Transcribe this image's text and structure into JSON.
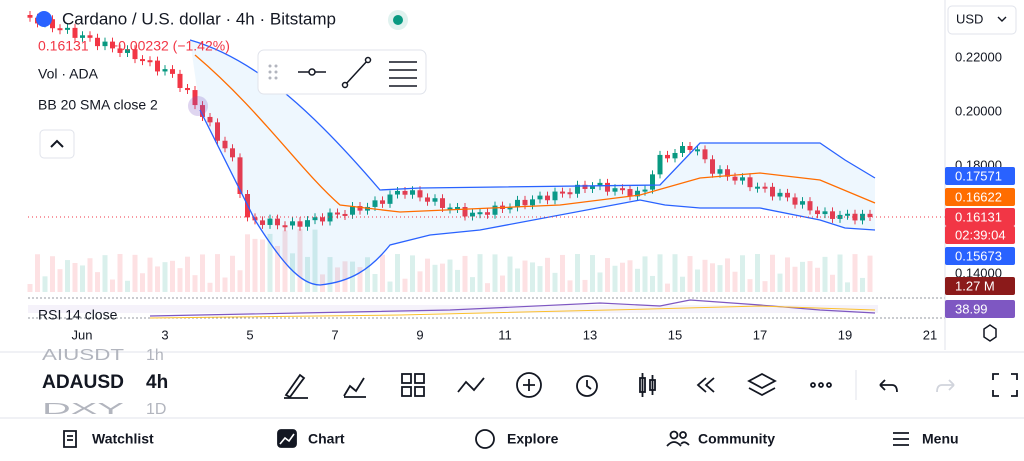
{
  "header": {
    "symbol": "Cardano / U.S. dollar · 4h · Bitstamp",
    "price": "0.16131",
    "change": "−0.00232 (−1.42%)",
    "volume": "Vol · ADA",
    "bollinger": "BB 20 SMA close 2",
    "rsi": "RSI 14 close",
    "currency": "USD"
  },
  "price_axis": [
    "0.22000",
    "0.20000",
    "0.18000",
    "0.14000"
  ],
  "badges": {
    "upper": "0.17571",
    "middle": "0.16622",
    "last": "0.16131",
    "timer": "02:39:04",
    "lower": "0.15673",
    "volume": "1.27 M",
    "rsi": "38.99"
  },
  "x_axis": [
    "Jun",
    "3",
    "5",
    "7",
    "9",
    "11",
    "13",
    "15",
    "17",
    "19",
    "21"
  ],
  "symbols": [
    {
      "name": "AIUSDT",
      "interval": "1h"
    },
    {
      "name": "ADAUSD",
      "interval": "4h"
    },
    {
      "name": "DXY",
      "interval": "1D"
    }
  ],
  "nav": [
    "Watchlist",
    "Chart",
    "Explore",
    "Community",
    "Menu"
  ]
}
